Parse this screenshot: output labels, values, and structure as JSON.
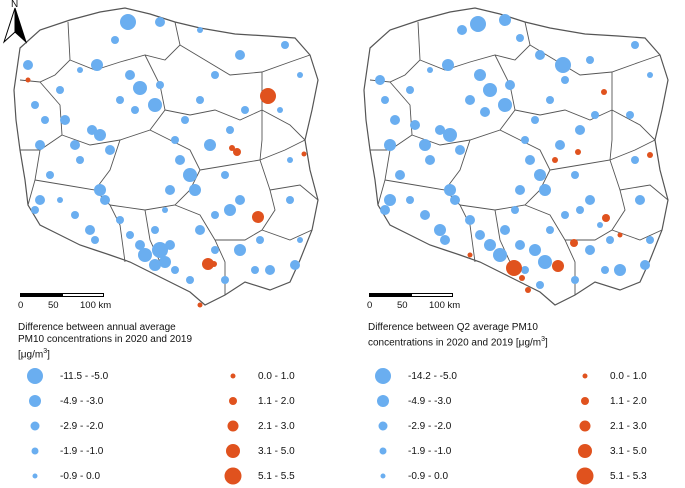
{
  "north_arrow": {
    "label": "N"
  },
  "scale": {
    "ticks": [
      "0",
      "50",
      "100 km"
    ]
  },
  "colors": {
    "decrease": "#6aaef0",
    "increase": "#e0521e",
    "boundary": "#555555"
  },
  "maps": [
    {
      "legend_title": "Difference between annual average\nPM10 concentrations in 2020 and 2019",
      "legend_unit_prefix": "[μg/m",
      "legend_unit_sup": "3",
      "legend_unit_suffix": "]",
      "decrease_classes": [
        "-11.5 - -5.0",
        "-4.9 - -3.0",
        "-2.9 - -2.0",
        "-1.9 - -1.0",
        "-0.9 - 0.0"
      ],
      "increase_classes": [
        "0.0 - 1.0",
        "1.1 - 2.0",
        "2.1 - 3.0",
        "3.1 - 5.0",
        "5.1 - 5.5"
      ]
    },
    {
      "legend_title": "Difference between Q2 average PM10\nconcentrations in 2020 and 2019",
      "legend_unit_prefix": "[μg/m",
      "legend_unit_sup": "3",
      "legend_unit_suffix": "]",
      "decrease_classes": [
        "-14.2 - -5.0",
        "-4.9 - -3.0",
        "-2.9 - -2.0",
        "-1.9 - -1.0",
        "-0.9 - 0.0"
      ],
      "increase_classes": [
        "0.0 - 1.0",
        "1.1 - 2.0",
        "2.1 - 3.0",
        "3.1 - 5.0",
        "5.1 - 5.3"
      ]
    }
  ]
}
